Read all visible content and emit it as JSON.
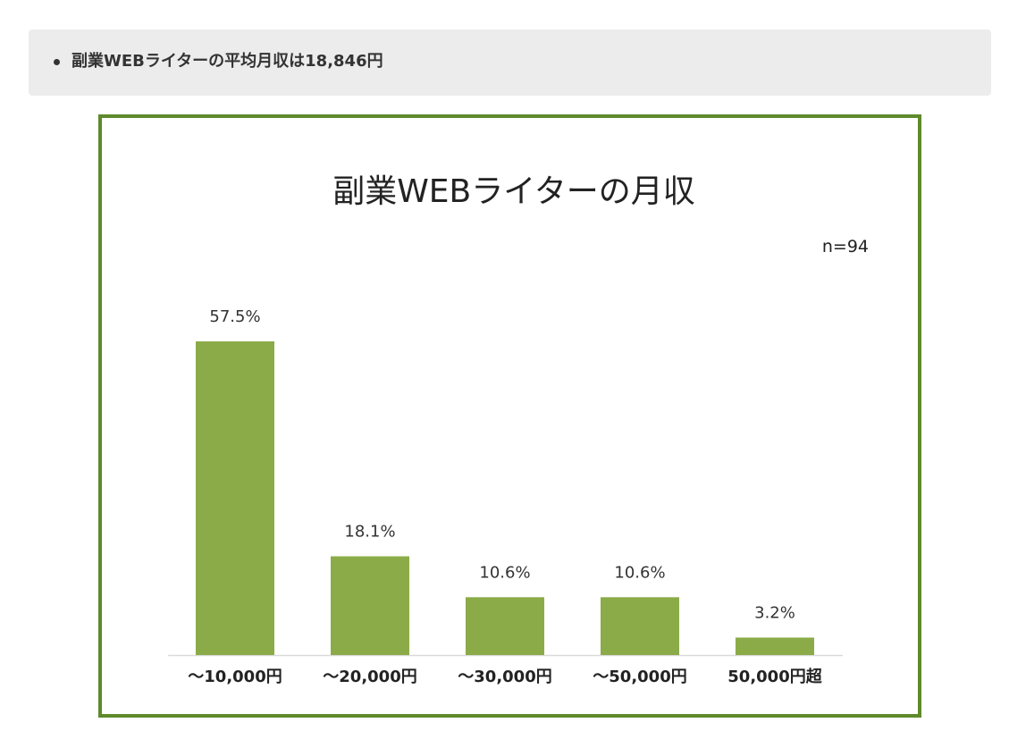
{
  "summary": {
    "text": "副業WEBライターの平均月収は18,846円"
  },
  "colors": {
    "bar": "#8bab48",
    "frame": "#5e8a2c",
    "summary_bg": "#ececec"
  },
  "chart_data": {
    "type": "bar",
    "title": "副業WEBライターの月収",
    "note": "n=94",
    "categories": [
      "～10,000円",
      "～20,000円",
      "～30,000円",
      "～50,000円",
      "50,000円超"
    ],
    "values": [
      57.5,
      18.1,
      10.6,
      10.6,
      3.2
    ],
    "value_labels": [
      "57.5%",
      "18.1%",
      "10.6%",
      "10.6%",
      "3.2%"
    ],
    "ylim": [
      0,
      60
    ],
    "grid": false
  }
}
